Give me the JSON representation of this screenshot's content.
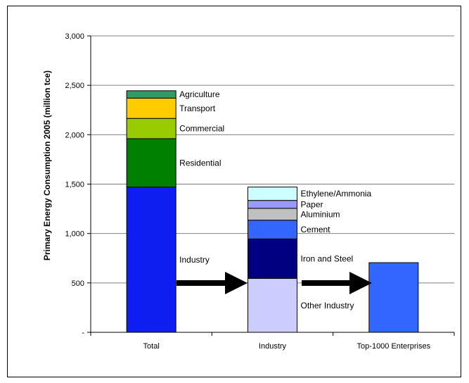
{
  "chart_data": {
    "type": "bar",
    "stacked": true,
    "ylabel": "Primary Energy Consumption 2005 (million tce)",
    "xlabel": "",
    "ylim": [
      0,
      3000
    ],
    "yticks": [
      0,
      500,
      1000,
      1500,
      2000,
      2500,
      3000
    ],
    "ytick_labels": [
      "-",
      "500",
      "1,000",
      "1,500",
      "2,000",
      "2,500",
      "3,000"
    ],
    "grid": "horizontal",
    "categories": [
      "Total",
      "Industry",
      "Top-1000 Enterprises"
    ],
    "bars": [
      {
        "category": "Total",
        "segments": [
          {
            "label": "Industry",
            "value": 1470,
            "color": "#0f1ef0"
          },
          {
            "label": "Residential",
            "value": 490,
            "color": "#008000"
          },
          {
            "label": "Commercial",
            "value": 205,
            "color": "#99cc00"
          },
          {
            "label": "Transport",
            "value": 205,
            "color": "#ffcc00"
          },
          {
            "label": "Agriculture",
            "value": 75,
            "color": "#339966"
          }
        ]
      },
      {
        "category": "Industry",
        "segments": [
          {
            "label": "Other Industry",
            "value": 545,
            "color": "#ccccff"
          },
          {
            "label": "Iron and Steel",
            "value": 400,
            "color": "#000080"
          },
          {
            "label": "Cement",
            "value": 190,
            "color": "#3366ff"
          },
          {
            "label": "Aluminium",
            "value": 120,
            "color": "#c0c0c0"
          },
          {
            "label": "Paper",
            "value": 80,
            "color": "#9999ff"
          },
          {
            "label": "Ethylene/Ammonia",
            "value": 135,
            "color": "#ccffff"
          }
        ]
      },
      {
        "category": "Top-1000 Enterprises",
        "segments": [
          {
            "label": "",
            "value": 705,
            "color": "#3366ff"
          }
        ]
      }
    ]
  }
}
